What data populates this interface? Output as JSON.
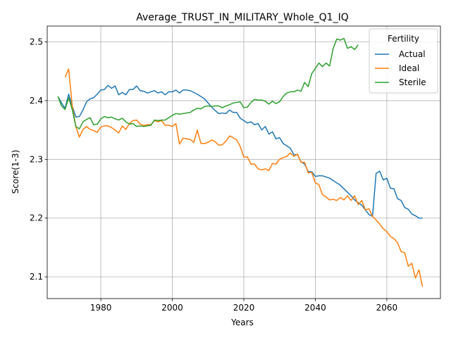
{
  "chart_data": {
    "type": "line",
    "title": "Average_TRUST_IN_MILITARY_Whole_Q1_IQ",
    "xlabel": "Years",
    "ylabel": "Score(1-3)",
    "xlim": [
      1965,
      2075
    ],
    "ylim": [
      2.063,
      2.527
    ],
    "xticks": [
      1980,
      2000,
      2020,
      2040,
      2060
    ],
    "yticks": [
      2.1,
      2.2,
      2.3,
      2.4,
      2.5
    ],
    "grid": true,
    "legend": {
      "title": "Fertility",
      "placement": "top-right"
    },
    "series": [
      {
        "name": "Actual",
        "color": "#1f77b4",
        "points": [
          [
            1968,
            2.407
          ],
          [
            1969,
            2.396
          ],
          [
            1970,
            2.387
          ],
          [
            1971,
            2.411
          ],
          [
            1972,
            2.391
          ],
          [
            1973,
            2.372
          ],
          [
            1974,
            2.373
          ],
          [
            1975,
            2.384
          ],
          [
            1976,
            2.398
          ],
          [
            1977,
            2.403
          ],
          [
            1978,
            2.405
          ],
          [
            1979,
            2.411
          ],
          [
            1980,
            2.418
          ],
          [
            1981,
            2.419
          ],
          [
            1982,
            2.426
          ],
          [
            1983,
            2.421
          ],
          [
            1984,
            2.425
          ],
          [
            1985,
            2.41
          ],
          [
            1986,
            2.414
          ],
          [
            1987,
            2.41
          ],
          [
            1988,
            2.419
          ],
          [
            1989,
            2.419
          ],
          [
            1990,
            2.425
          ],
          [
            1991,
            2.417
          ],
          [
            1992,
            2.416
          ],
          [
            1993,
            2.413
          ],
          [
            1994,
            2.415
          ],
          [
            1995,
            2.417
          ],
          [
            1996,
            2.413
          ],
          [
            1997,
            2.415
          ],
          [
            1998,
            2.41
          ],
          [
            1999,
            2.415
          ],
          [
            2000,
            2.415
          ],
          [
            2001,
            2.418
          ],
          [
            2002,
            2.413
          ],
          [
            2003,
            2.418
          ],
          [
            2004,
            2.418
          ],
          [
            2005,
            2.417
          ],
          [
            2006,
            2.414
          ],
          [
            2007,
            2.411
          ],
          [
            2008,
            2.407
          ],
          [
            2009,
            2.403
          ],
          [
            2010,
            2.396
          ],
          [
            2011,
            2.389
          ],
          [
            2012,
            2.383
          ],
          [
            2013,
            2.378
          ],
          [
            2014,
            2.379
          ],
          [
            2015,
            2.378
          ],
          [
            2016,
            2.384
          ],
          [
            2017,
            2.38
          ],
          [
            2018,
            2.38
          ],
          [
            2019,
            2.37
          ],
          [
            2020,
            2.366
          ],
          [
            2021,
            2.362
          ],
          [
            2022,
            2.364
          ],
          [
            2023,
            2.359
          ],
          [
            2024,
            2.361
          ],
          [
            2025,
            2.35
          ],
          [
            2026,
            2.356
          ],
          [
            2027,
            2.343
          ],
          [
            2028,
            2.347
          ],
          [
            2029,
            2.335
          ],
          [
            2030,
            2.337
          ],
          [
            2031,
            2.327
          ],
          [
            2032,
            2.323
          ],
          [
            2033,
            2.319
          ],
          [
            2034,
            2.308
          ],
          [
            2035,
            2.308
          ],
          [
            2036,
            2.296
          ],
          [
            2037,
            2.292
          ],
          [
            2038,
            2.279
          ],
          [
            2039,
            2.279
          ],
          [
            2040,
            2.271
          ],
          [
            2041,
            2.272
          ],
          [
            2042,
            2.272
          ],
          [
            2043,
            2.27
          ],
          [
            2044,
            2.268
          ],
          [
            2045,
            2.264
          ],
          [
            2046,
            2.26
          ],
          [
            2047,
            2.256
          ],
          [
            2048,
            2.25
          ],
          [
            2049,
            2.244
          ],
          [
            2050,
            2.238
          ],
          [
            2051,
            2.231
          ],
          [
            2052,
            2.226
          ],
          [
            2053,
            2.222
          ],
          [
            2054,
            2.214
          ],
          [
            2055,
            2.206
          ],
          [
            2056,
            2.203
          ],
          [
            2057,
            2.276
          ],
          [
            2058,
            2.28
          ],
          [
            2059,
            2.265
          ],
          [
            2060,
            2.268
          ],
          [
            2061,
            2.251
          ],
          [
            2062,
            2.25
          ],
          [
            2063,
            2.233
          ],
          [
            2064,
            2.23
          ],
          [
            2065,
            2.218
          ],
          [
            2066,
            2.215
          ],
          [
            2067,
            2.207
          ],
          [
            2068,
            2.204
          ],
          [
            2069,
            2.2
          ],
          [
            2070,
            2.2
          ]
        ]
      },
      {
        "name": "Ideal",
        "color": "#ff7f0e",
        "points": [
          [
            1970,
            2.44
          ],
          [
            1971,
            2.454
          ],
          [
            1972,
            2.391
          ],
          [
            1973,
            2.356
          ],
          [
            1974,
            2.338
          ],
          [
            1975,
            2.351
          ],
          [
            1976,
            2.356
          ],
          [
            1977,
            2.351
          ],
          [
            1978,
            2.349
          ],
          [
            1979,
            2.346
          ],
          [
            1980,
            2.355
          ],
          [
            1981,
            2.357
          ],
          [
            1982,
            2.357
          ],
          [
            1983,
            2.354
          ],
          [
            1984,
            2.35
          ],
          [
            1985,
            2.345
          ],
          [
            1986,
            2.357
          ],
          [
            1987,
            2.351
          ],
          [
            1988,
            2.361
          ],
          [
            1989,
            2.366
          ],
          [
            1990,
            2.367
          ],
          [
            1991,
            2.36
          ],
          [
            1992,
            2.358
          ],
          [
            1993,
            2.359
          ],
          [
            1994,
            2.359
          ],
          [
            1995,
            2.366
          ],
          [
            1996,
            2.364
          ],
          [
            1997,
            2.366
          ],
          [
            1998,
            2.358
          ],
          [
            1999,
            2.358
          ],
          [
            2000,
            2.356
          ],
          [
            2001,
            2.361
          ],
          [
            2002,
            2.326
          ],
          [
            2003,
            2.336
          ],
          [
            2004,
            2.335
          ],
          [
            2005,
            2.334
          ],
          [
            2006,
            2.329
          ],
          [
            2007,
            2.35
          ],
          [
            2008,
            2.327
          ],
          [
            2009,
            2.327
          ],
          [
            2010,
            2.329
          ],
          [
            2011,
            2.333
          ],
          [
            2012,
            2.33
          ],
          [
            2013,
            2.324
          ],
          [
            2014,
            2.325
          ],
          [
            2015,
            2.331
          ],
          [
            2016,
            2.34
          ],
          [
            2017,
            2.337
          ],
          [
            2018,
            2.333
          ],
          [
            2019,
            2.322
          ],
          [
            2020,
            2.304
          ],
          [
            2021,
            2.304
          ],
          [
            2022,
            2.292
          ],
          [
            2023,
            2.292
          ],
          [
            2024,
            2.284
          ],
          [
            2025,
            2.282
          ],
          [
            2026,
            2.284
          ],
          [
            2027,
            2.281
          ],
          [
            2028,
            2.293
          ],
          [
            2029,
            2.292
          ],
          [
            2030,
            2.3
          ],
          [
            2031,
            2.303
          ],
          [
            2032,
            2.305
          ],
          [
            2033,
            2.311
          ],
          [
            2034,
            2.305
          ],
          [
            2035,
            2.309
          ],
          [
            2036,
            2.295
          ],
          [
            2037,
            2.295
          ],
          [
            2038,
            2.277
          ],
          [
            2039,
            2.278
          ],
          [
            2040,
            2.26
          ],
          [
            2041,
            2.257
          ],
          [
            2042,
            2.24
          ],
          [
            2043,
            2.236
          ],
          [
            2044,
            2.231
          ],
          [
            2045,
            2.232
          ],
          [
            2046,
            2.23
          ],
          [
            2047,
            2.235
          ],
          [
            2048,
            2.231
          ],
          [
            2049,
            2.238
          ],
          [
            2050,
            2.23
          ],
          [
            2051,
            2.238
          ],
          [
            2052,
            2.223
          ],
          [
            2053,
            2.23
          ],
          [
            2054,
            2.214
          ],
          [
            2055,
            2.216
          ],
          [
            2056,
            2.203
          ],
          [
            2057,
            2.197
          ],
          [
            2058,
            2.19
          ],
          [
            2059,
            2.182
          ],
          [
            2060,
            2.177
          ],
          [
            2061,
            2.169
          ],
          [
            2062,
            2.165
          ],
          [
            2063,
            2.158
          ],
          [
            2064,
            2.143
          ],
          [
            2065,
            2.141
          ],
          [
            2066,
            2.118
          ],
          [
            2067,
            2.123
          ],
          [
            2068,
            2.098
          ],
          [
            2069,
            2.112
          ],
          [
            2070,
            2.083
          ]
        ]
      },
      {
        "name": "Sterile",
        "color": "#2ca02c",
        "points": [
          [
            1968,
            2.407
          ],
          [
            1969,
            2.391
          ],
          [
            1970,
            2.385
          ],
          [
            1971,
            2.405
          ],
          [
            1972,
            2.385
          ],
          [
            1973,
            2.356
          ],
          [
            1974,
            2.352
          ],
          [
            1975,
            2.364
          ],
          [
            1976,
            2.368
          ],
          [
            1977,
            2.371
          ],
          [
            1978,
            2.359
          ],
          [
            1979,
            2.36
          ],
          [
            1980,
            2.369
          ],
          [
            1981,
            2.373
          ],
          [
            1982,
            2.371
          ],
          [
            1983,
            2.372
          ],
          [
            1984,
            2.369
          ],
          [
            1985,
            2.367
          ],
          [
            1986,
            2.37
          ],
          [
            1987,
            2.364
          ],
          [
            1988,
            2.36
          ],
          [
            1989,
            2.361
          ],
          [
            1990,
            2.356
          ],
          [
            1991,
            2.357
          ],
          [
            1992,
            2.356
          ],
          [
            1993,
            2.357
          ],
          [
            1994,
            2.358
          ],
          [
            1995,
            2.367
          ],
          [
            1996,
            2.366
          ],
          [
            1997,
            2.367
          ],
          [
            1998,
            2.367
          ],
          [
            1999,
            2.371
          ],
          [
            2000,
            2.375
          ],
          [
            2001,
            2.378
          ],
          [
            2002,
            2.377
          ],
          [
            2003,
            2.378
          ],
          [
            2004,
            2.379
          ],
          [
            2005,
            2.38
          ],
          [
            2006,
            2.384
          ],
          [
            2007,
            2.387
          ],
          [
            2008,
            2.386
          ],
          [
            2009,
            2.39
          ],
          [
            2010,
            2.391
          ],
          [
            2011,
            2.39
          ],
          [
            2012,
            2.391
          ],
          [
            2013,
            2.391
          ],
          [
            2014,
            2.388
          ],
          [
            2015,
            2.391
          ],
          [
            2016,
            2.393
          ],
          [
            2017,
            2.396
          ],
          [
            2018,
            2.397
          ],
          [
            2019,
            2.398
          ],
          [
            2020,
            2.388
          ],
          [
            2021,
            2.389
          ],
          [
            2022,
            2.397
          ],
          [
            2023,
            2.402
          ],
          [
            2024,
            2.401
          ],
          [
            2025,
            2.401
          ],
          [
            2026,
            2.399
          ],
          [
            2027,
            2.394
          ],
          [
            2028,
            2.399
          ],
          [
            2029,
            2.395
          ],
          [
            2030,
            2.398
          ],
          [
            2031,
            2.407
          ],
          [
            2032,
            2.413
          ],
          [
            2033,
            2.415
          ],
          [
            2034,
            2.415
          ],
          [
            2035,
            2.418
          ],
          [
            2036,
            2.416
          ],
          [
            2037,
            2.431
          ],
          [
            2038,
            2.424
          ],
          [
            2039,
            2.446
          ],
          [
            2040,
            2.455
          ],
          [
            2041,
            2.464
          ],
          [
            2042,
            2.458
          ],
          [
            2043,
            2.464
          ],
          [
            2044,
            2.459
          ],
          [
            2045,
            2.489
          ],
          [
            2046,
            2.505
          ],
          [
            2047,
            2.503
          ],
          [
            2048,
            2.506
          ],
          [
            2049,
            2.489
          ],
          [
            2050,
            2.492
          ],
          [
            2051,
            2.487
          ],
          [
            2052,
            2.495
          ]
        ]
      }
    ]
  }
}
